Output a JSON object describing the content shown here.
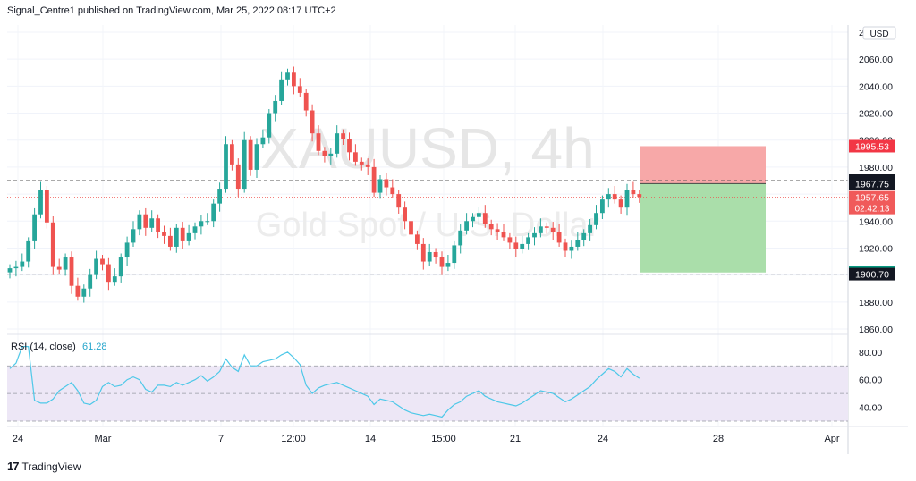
{
  "header": {
    "publish_line": "Signal_Centre1 published on TradingView.com, Mar 25, 2022 08:17 UTC+2"
  },
  "watermark": {
    "symbol": "XAUUSD, 4h",
    "description": "Gold Spot / U.S. Dollar"
  },
  "currency_button": "USD",
  "footer": {
    "logo_text": "TradingView"
  },
  "colors": {
    "up": "#26a69a",
    "down": "#ef5350",
    "stop": "#f7a3a3",
    "target": "#a5dca5",
    "rsi": "#4dc8e8",
    "rsi_band": "#ede7f6"
  },
  "chart_data": [
    {
      "type": "candlestick",
      "ylim": [
        1860,
        2080
      ],
      "y_ticks": [
        1860,
        1880,
        1900,
        1920,
        1940,
        1960,
        1980,
        2000,
        2020,
        2040,
        2060,
        2080
      ],
      "y_tick_labels": [
        "1860.00",
        "1880.00",
        "1900.00",
        "1920.00",
        "1940.00",
        "1960.00",
        "1980.00",
        "2000.00",
        "2020.00",
        "2040.00",
        "2060.00",
        "2080.00"
      ],
      "x_ticks": [
        "24",
        "Mar",
        "7",
        "12:00",
        "14",
        "15:00",
        "21",
        "24",
        "28",
        "Apr"
      ],
      "closes": [
        1905,
        1906,
        1910,
        1925,
        1945,
        1963,
        1939,
        1906,
        1904,
        1913,
        1892,
        1884,
        1890,
        1900,
        1912,
        1908,
        1895,
        1899,
        1913,
        1924,
        1934,
        1945,
        1935,
        1942,
        1932,
        1929,
        1921,
        1935,
        1925,
        1931,
        1936,
        1940,
        1940,
        1953,
        1964,
        1997,
        1982,
        1964,
        2000,
        1978,
        1997,
        2002,
        2020,
        2029,
        2045,
        2050,
        2040,
        2035,
        2022,
        2005,
        1992,
        1988,
        1990,
        2005,
        2001,
        1991,
        1984,
        1982,
        1980,
        1961,
        1971,
        1965,
        1960,
        1950,
        1940,
        1930,
        1923,
        1910,
        1917,
        1913,
        1906,
        1909,
        1922,
        1933,
        1940,
        1943,
        1946,
        1938,
        1934,
        1932,
        1928,
        1924,
        1919,
        1923,
        1928,
        1931,
        1936,
        1935,
        1932,
        1924,
        1918,
        1921,
        1926,
        1931,
        1937,
        1946,
        1956,
        1960,
        1956,
        1950,
        1963,
        1960,
        1958
      ],
      "entry": 1967.75,
      "stop_loss": 1995.53,
      "take_profit": 1901.91,
      "last_price": 1957.65,
      "countdown": "02:42:13",
      "level_labels": [
        "1995.53",
        "1970.00",
        "1967.75",
        "1957.65",
        "1901.91",
        "1900.70"
      ],
      "hlines": [
        1970.0,
        1900.7
      ]
    },
    {
      "type": "line",
      "title": "RSI (14, close)",
      "last_value": "61.28",
      "ylim": [
        30,
        87
      ],
      "y_ticks": [
        40,
        60,
        80
      ],
      "y_tick_labels": [
        "40.00",
        "60.00",
        "80.00"
      ],
      "bands": [
        30,
        70
      ],
      "values": [
        68,
        72,
        84,
        84,
        45,
        43,
        43,
        46,
        52,
        55,
        58,
        52,
        43,
        42,
        45,
        55,
        58,
        55,
        56,
        60,
        62,
        60,
        53,
        51,
        56,
        56,
        55,
        58,
        56,
        58,
        60,
        63,
        59,
        62,
        66,
        75,
        69,
        66,
        78,
        70,
        70,
        73,
        74,
        75,
        78,
        80,
        76,
        71,
        56,
        50,
        54,
        56,
        57,
        58,
        56,
        54,
        52,
        50,
        48,
        42,
        46,
        45,
        44,
        41,
        38,
        36,
        35,
        34,
        35,
        34,
        33,
        38,
        42,
        44,
        48,
        50,
        52,
        48,
        46,
        44,
        43,
        42,
        41,
        43,
        46,
        49,
        52,
        51,
        50,
        47,
        44,
        46,
        49,
        52,
        55,
        60,
        64,
        68,
        66,
        62,
        68,
        64,
        61
      ]
    }
  ]
}
